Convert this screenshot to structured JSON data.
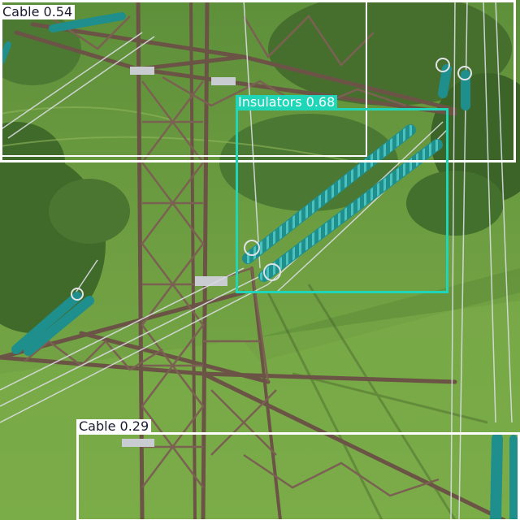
{
  "detections": [
    {
      "label": "Cable 0.54",
      "color": "#ffffff"
    },
    {
      "label": "Insulators 0.68",
      "color": "#1fd6b8"
    },
    {
      "label": "Cable 0.29",
      "color": "#ffffff"
    }
  ],
  "colors": {
    "grass_light": "#7cab48",
    "grass_dark": "#4f7a30",
    "tree": "#3d6328",
    "steel": "#6b5446",
    "insulator": "#1e8f8c",
    "wire": "#d9dde0",
    "label_text_dark": "#1a1a2e"
  }
}
